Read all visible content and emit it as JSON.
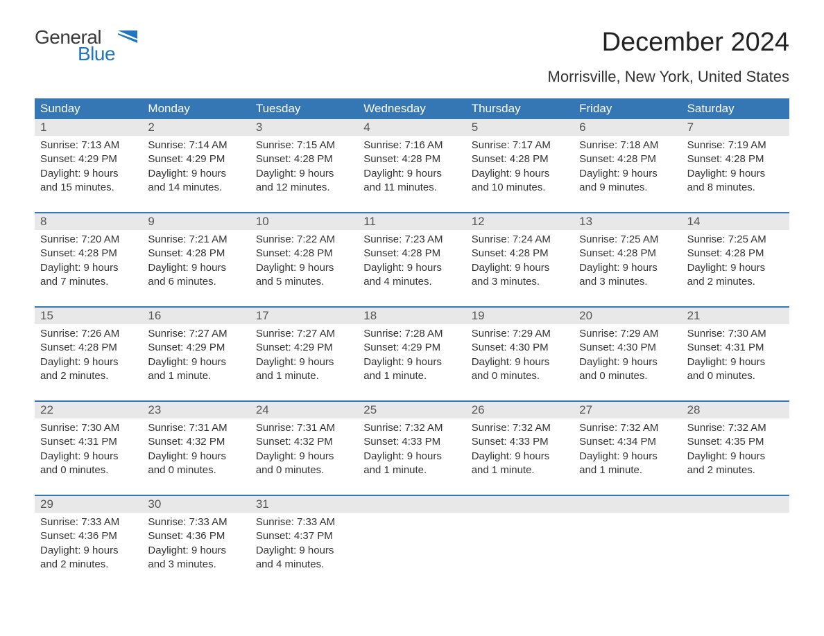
{
  "logo": {
    "word1": "General",
    "word2": "Blue",
    "flag_color": "#2176bd"
  },
  "title": "December 2024",
  "subtitle": "Morrisville, New York, United States",
  "colors": {
    "header_bg": "#3577b5",
    "header_text": "#ffffff",
    "daynum_bg": "#e8e8e8",
    "week_border": "#3577b5",
    "body_text": "#333333",
    "logo_gray": "#3a3a3a",
    "logo_blue": "#2176bd",
    "background": "#ffffff"
  },
  "typography": {
    "title_fontsize": 38,
    "subtitle_fontsize": 22,
    "dow_fontsize": 17,
    "daynum_fontsize": 17,
    "body_fontsize": 15,
    "font_family": "Arial"
  },
  "layout": {
    "columns": 7,
    "rows": 5,
    "cell_min_height": 92
  },
  "days_of_week": [
    "Sunday",
    "Monday",
    "Tuesday",
    "Wednesday",
    "Thursday",
    "Friday",
    "Saturday"
  ],
  "weeks": [
    [
      {
        "n": "1",
        "sunrise": "Sunrise: 7:13 AM",
        "sunset": "Sunset: 4:29 PM",
        "d1": "Daylight: 9 hours",
        "d2": "and 15 minutes."
      },
      {
        "n": "2",
        "sunrise": "Sunrise: 7:14 AM",
        "sunset": "Sunset: 4:29 PM",
        "d1": "Daylight: 9 hours",
        "d2": "and 14 minutes."
      },
      {
        "n": "3",
        "sunrise": "Sunrise: 7:15 AM",
        "sunset": "Sunset: 4:28 PM",
        "d1": "Daylight: 9 hours",
        "d2": "and 12 minutes."
      },
      {
        "n": "4",
        "sunrise": "Sunrise: 7:16 AM",
        "sunset": "Sunset: 4:28 PM",
        "d1": "Daylight: 9 hours",
        "d2": "and 11 minutes."
      },
      {
        "n": "5",
        "sunrise": "Sunrise: 7:17 AM",
        "sunset": "Sunset: 4:28 PM",
        "d1": "Daylight: 9 hours",
        "d2": "and 10 minutes."
      },
      {
        "n": "6",
        "sunrise": "Sunrise: 7:18 AM",
        "sunset": "Sunset: 4:28 PM",
        "d1": "Daylight: 9 hours",
        "d2": "and 9 minutes."
      },
      {
        "n": "7",
        "sunrise": "Sunrise: 7:19 AM",
        "sunset": "Sunset: 4:28 PM",
        "d1": "Daylight: 9 hours",
        "d2": "and 8 minutes."
      }
    ],
    [
      {
        "n": "8",
        "sunrise": "Sunrise: 7:20 AM",
        "sunset": "Sunset: 4:28 PM",
        "d1": "Daylight: 9 hours",
        "d2": "and 7 minutes."
      },
      {
        "n": "9",
        "sunrise": "Sunrise: 7:21 AM",
        "sunset": "Sunset: 4:28 PM",
        "d1": "Daylight: 9 hours",
        "d2": "and 6 minutes."
      },
      {
        "n": "10",
        "sunrise": "Sunrise: 7:22 AM",
        "sunset": "Sunset: 4:28 PM",
        "d1": "Daylight: 9 hours",
        "d2": "and 5 minutes."
      },
      {
        "n": "11",
        "sunrise": "Sunrise: 7:23 AM",
        "sunset": "Sunset: 4:28 PM",
        "d1": "Daylight: 9 hours",
        "d2": "and 4 minutes."
      },
      {
        "n": "12",
        "sunrise": "Sunrise: 7:24 AM",
        "sunset": "Sunset: 4:28 PM",
        "d1": "Daylight: 9 hours",
        "d2": "and 3 minutes."
      },
      {
        "n": "13",
        "sunrise": "Sunrise: 7:25 AM",
        "sunset": "Sunset: 4:28 PM",
        "d1": "Daylight: 9 hours",
        "d2": "and 3 minutes."
      },
      {
        "n": "14",
        "sunrise": "Sunrise: 7:25 AM",
        "sunset": "Sunset: 4:28 PM",
        "d1": "Daylight: 9 hours",
        "d2": "and 2 minutes."
      }
    ],
    [
      {
        "n": "15",
        "sunrise": "Sunrise: 7:26 AM",
        "sunset": "Sunset: 4:28 PM",
        "d1": "Daylight: 9 hours",
        "d2": "and 2 minutes."
      },
      {
        "n": "16",
        "sunrise": "Sunrise: 7:27 AM",
        "sunset": "Sunset: 4:29 PM",
        "d1": "Daylight: 9 hours",
        "d2": "and 1 minute."
      },
      {
        "n": "17",
        "sunrise": "Sunrise: 7:27 AM",
        "sunset": "Sunset: 4:29 PM",
        "d1": "Daylight: 9 hours",
        "d2": "and 1 minute."
      },
      {
        "n": "18",
        "sunrise": "Sunrise: 7:28 AM",
        "sunset": "Sunset: 4:29 PM",
        "d1": "Daylight: 9 hours",
        "d2": "and 1 minute."
      },
      {
        "n": "19",
        "sunrise": "Sunrise: 7:29 AM",
        "sunset": "Sunset: 4:30 PM",
        "d1": "Daylight: 9 hours",
        "d2": "and 0 minutes."
      },
      {
        "n": "20",
        "sunrise": "Sunrise: 7:29 AM",
        "sunset": "Sunset: 4:30 PM",
        "d1": "Daylight: 9 hours",
        "d2": "and 0 minutes."
      },
      {
        "n": "21",
        "sunrise": "Sunrise: 7:30 AM",
        "sunset": "Sunset: 4:31 PM",
        "d1": "Daylight: 9 hours",
        "d2": "and 0 minutes."
      }
    ],
    [
      {
        "n": "22",
        "sunrise": "Sunrise: 7:30 AM",
        "sunset": "Sunset: 4:31 PM",
        "d1": "Daylight: 9 hours",
        "d2": "and 0 minutes."
      },
      {
        "n": "23",
        "sunrise": "Sunrise: 7:31 AM",
        "sunset": "Sunset: 4:32 PM",
        "d1": "Daylight: 9 hours",
        "d2": "and 0 minutes."
      },
      {
        "n": "24",
        "sunrise": "Sunrise: 7:31 AM",
        "sunset": "Sunset: 4:32 PM",
        "d1": "Daylight: 9 hours",
        "d2": "and 0 minutes."
      },
      {
        "n": "25",
        "sunrise": "Sunrise: 7:32 AM",
        "sunset": "Sunset: 4:33 PM",
        "d1": "Daylight: 9 hours",
        "d2": "and 1 minute."
      },
      {
        "n": "26",
        "sunrise": "Sunrise: 7:32 AM",
        "sunset": "Sunset: 4:33 PM",
        "d1": "Daylight: 9 hours",
        "d2": "and 1 minute."
      },
      {
        "n": "27",
        "sunrise": "Sunrise: 7:32 AM",
        "sunset": "Sunset: 4:34 PM",
        "d1": "Daylight: 9 hours",
        "d2": "and 1 minute."
      },
      {
        "n": "28",
        "sunrise": "Sunrise: 7:32 AM",
        "sunset": "Sunset: 4:35 PM",
        "d1": "Daylight: 9 hours",
        "d2": "and 2 minutes."
      }
    ],
    [
      {
        "n": "29",
        "sunrise": "Sunrise: 7:33 AM",
        "sunset": "Sunset: 4:36 PM",
        "d1": "Daylight: 9 hours",
        "d2": "and 2 minutes."
      },
      {
        "n": "30",
        "sunrise": "Sunrise: 7:33 AM",
        "sunset": "Sunset: 4:36 PM",
        "d1": "Daylight: 9 hours",
        "d2": "and 3 minutes."
      },
      {
        "n": "31",
        "sunrise": "Sunrise: 7:33 AM",
        "sunset": "Sunset: 4:37 PM",
        "d1": "Daylight: 9 hours",
        "d2": "and 4 minutes."
      },
      null,
      null,
      null,
      null
    ]
  ]
}
